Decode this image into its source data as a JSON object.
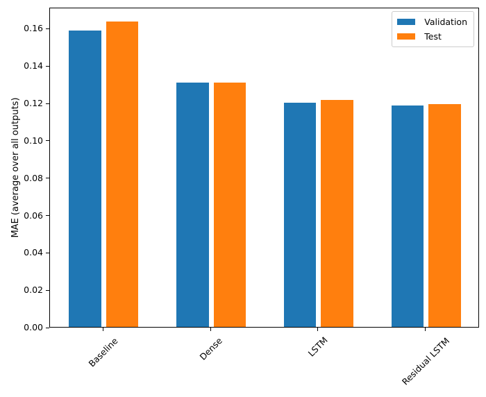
{
  "chart_data": {
    "type": "bar",
    "title": "",
    "categories": [
      "Baseline",
      "Dense",
      "LSTM",
      "Residual LSTM"
    ],
    "series": [
      {
        "name": "Validation",
        "color": "#1f77b4",
        "values": [
          0.1585,
          0.1308,
          0.12,
          0.1184
        ]
      },
      {
        "name": "Test",
        "color": "#ff7f0e",
        "values": [
          0.1635,
          0.131,
          0.1215,
          0.1193
        ]
      }
    ],
    "xlabel": "",
    "ylabel": "MAE (average over all outputs)",
    "ylim": [
      0,
      0.1713
    ],
    "ytick_values": [
      0.0,
      0.02,
      0.04,
      0.06,
      0.08,
      0.1,
      0.12,
      0.14,
      0.16
    ],
    "ytick_labels": [
      "0.00",
      "0.02",
      "0.04",
      "0.06",
      "0.08",
      "0.10",
      "0.12",
      "0.14",
      "0.16"
    ],
    "xtick_rotation_deg": 45,
    "grid": false,
    "legend": {
      "position": "upper right",
      "labels": [
        "Validation",
        "Test"
      ]
    },
    "colors": {
      "axis": "#000000",
      "background": "#ffffff",
      "legend_border": "#cccccc"
    }
  }
}
